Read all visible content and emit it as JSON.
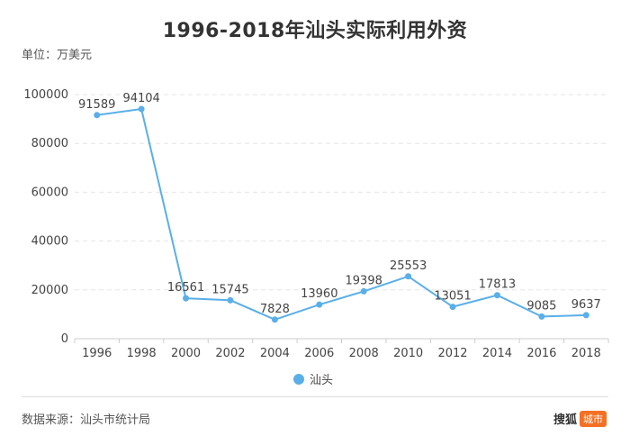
{
  "chart_data": {
    "type": "line",
    "title": "1996-2018年汕头实际利用外资",
    "unit_label": "单位：万美元",
    "x": [
      "1996",
      "1998",
      "2000",
      "2002",
      "2004",
      "2006",
      "2008",
      "2010",
      "2012",
      "2014",
      "2016",
      "2018"
    ],
    "series": [
      {
        "name": "汕头",
        "values": [
          91589,
          94104,
          16561,
          15745,
          7828,
          13960,
          19398,
          25553,
          13051,
          17813,
          9085,
          9637
        ]
      }
    ],
    "ylim": [
      0,
      100000
    ],
    "yticks": [
      0,
      20000,
      40000,
      60000,
      80000,
      100000
    ],
    "grid": true,
    "legend": "bottom",
    "colors": {
      "series": "#5aafe8",
      "grid": "#e6e6e6",
      "axis": "#cccccc"
    }
  },
  "footer": {
    "source": "数据来源：汕头市统计局",
    "logo_text": "搜狐",
    "logo_badge": "城市"
  }
}
